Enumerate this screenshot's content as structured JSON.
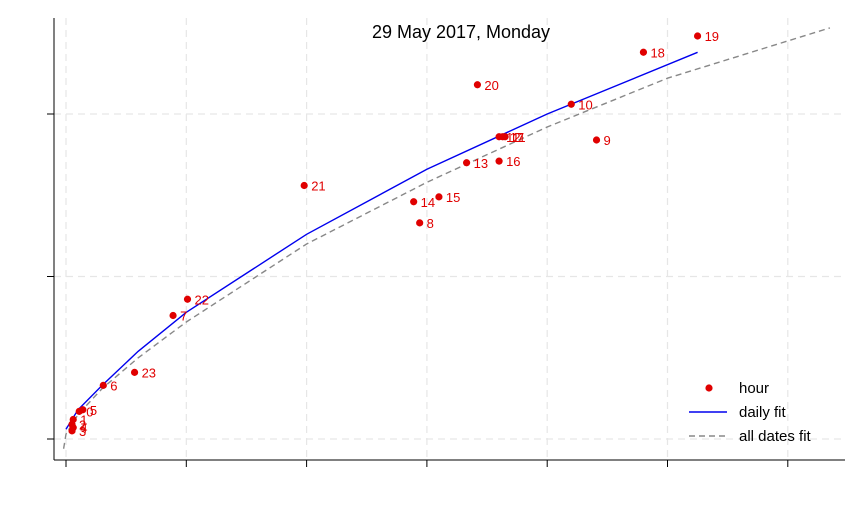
{
  "chart_data": {
    "type": "scatter",
    "title": "29 May 2017, Monday",
    "xlabel": "",
    "ylabel": "",
    "xlim": [
      -0.1,
      6.4
    ],
    "ylim": [
      -0.1,
      2.6
    ],
    "x_ticks": [
      0,
      1,
      2,
      3,
      4,
      5,
      6
    ],
    "y_ticks": [
      0,
      1,
      2
    ],
    "tick_labels_shown": false,
    "grid": true,
    "legend_position": "bottom-right",
    "colors": {
      "points": "#e00000",
      "daily_fit": "#0000ee",
      "all_dates_fit": "#888888",
      "grid": "#e6e6e6"
    },
    "series": [
      {
        "name": "hour",
        "kind": "points",
        "points": [
          {
            "label": "0",
            "x": 0.11,
            "y": 0.17
          },
          {
            "label": "1",
            "x": 0.06,
            "y": 0.12
          },
          {
            "label": "2",
            "x": 0.05,
            "y": 0.09
          },
          {
            "label": "3",
            "x": 0.05,
            "y": 0.05
          },
          {
            "label": "4",
            "x": 0.06,
            "y": 0.07
          },
          {
            "label": "5",
            "x": 0.14,
            "y": 0.18
          },
          {
            "label": "6",
            "x": 0.31,
            "y": 0.33
          },
          {
            "label": "7",
            "x": 0.89,
            "y": 0.76
          },
          {
            "label": "8",
            "x": 2.94,
            "y": 1.33
          },
          {
            "label": "9",
            "x": 4.41,
            "y": 1.84
          },
          {
            "label": "10",
            "x": 4.2,
            "y": 2.06
          },
          {
            "label": "11",
            "x": 3.65,
            "y": 1.86
          },
          {
            "label": "12",
            "x": 3.6,
            "y": 1.86
          },
          {
            "label": "13",
            "x": 3.33,
            "y": 1.7
          },
          {
            "label": "14",
            "x": 2.89,
            "y": 1.46
          },
          {
            "label": "15",
            "x": 3.1,
            "y": 1.49
          },
          {
            "label": "16",
            "x": 3.6,
            "y": 1.71
          },
          {
            "label": "17",
            "x": 3.63,
            "y": 1.86
          },
          {
            "label": "18",
            "x": 4.8,
            "y": 2.38
          },
          {
            "label": "19",
            "x": 5.25,
            "y": 2.48
          },
          {
            "label": "20",
            "x": 3.42,
            "y": 2.18
          },
          {
            "label": "21",
            "x": 1.98,
            "y": 1.56
          },
          {
            "label": "22",
            "x": 1.01,
            "y": 0.86
          },
          {
            "label": "23",
            "x": 0.57,
            "y": 0.41
          }
        ]
      },
      {
        "name": "daily fit",
        "kind": "line",
        "x": [
          0.0,
          0.1,
          0.3,
          0.6,
          1.0,
          2.0,
          3.0,
          4.0,
          5.25
        ],
        "y": [
          0.06,
          0.18,
          0.33,
          0.54,
          0.78,
          1.26,
          1.66,
          2.0,
          2.38
        ]
      },
      {
        "name": "all dates fit",
        "kind": "dashed-line",
        "x": [
          -0.02,
          0.0,
          0.1,
          0.3,
          0.6,
          1.0,
          2.0,
          3.0,
          4.0,
          5.0,
          6.35
        ],
        "y": [
          -0.06,
          0.03,
          0.15,
          0.31,
          0.5,
          0.72,
          1.2,
          1.58,
          1.92,
          2.22,
          2.53
        ]
      }
    ]
  }
}
